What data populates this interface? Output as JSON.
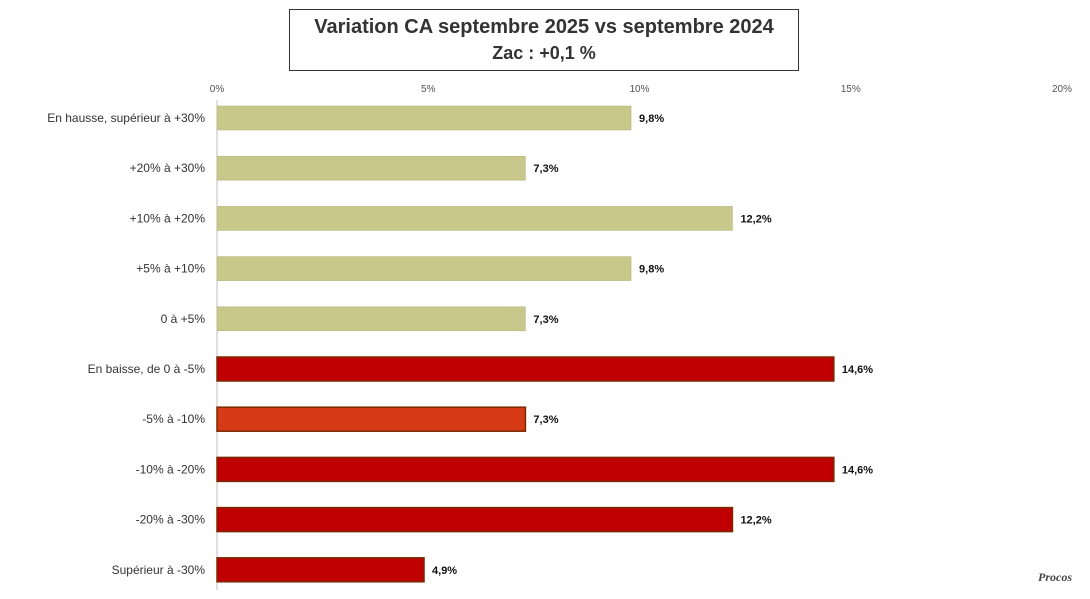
{
  "chart_data": {
    "type": "bar",
    "orientation": "horizontal",
    "title": "Variation CA septembre 2025 vs septembre 2024",
    "subtitle": "Zac : +0,1 %",
    "xlim": [
      0,
      20
    ],
    "xticks": [
      "0%",
      "5%",
      "10%",
      "15%",
      "20%"
    ],
    "categories": [
      "En hausse, supérieur à +30%",
      "+20% à +30%",
      "+10% à +20%",
      "+5% à +10%",
      "0 à +5%",
      "En baisse, de 0 à -5%",
      "-5% à -10%",
      "-10% à -20%",
      "-20% à -30%",
      "Supérieur à -30%"
    ],
    "values": [
      9.8,
      7.3,
      12.2,
      9.8,
      7.3,
      14.6,
      7.3,
      14.6,
      12.2,
      4.9
    ],
    "value_labels": [
      "9,8%",
      "7,3%",
      "12,2%",
      "9,8%",
      "7,3%",
      "14,6%",
      "7,3%",
      "14,6%",
      "12,2%",
      "4,9%"
    ],
    "colors": [
      "#c8c88a",
      "#c8c88a",
      "#c8c88a",
      "#c8c88a",
      "#c8c88a",
      "#c00000",
      "#d63a16",
      "#c00000",
      "#c00000",
      "#c00000"
    ],
    "grid": false,
    "legend": "none"
  },
  "watermark": "Procos"
}
